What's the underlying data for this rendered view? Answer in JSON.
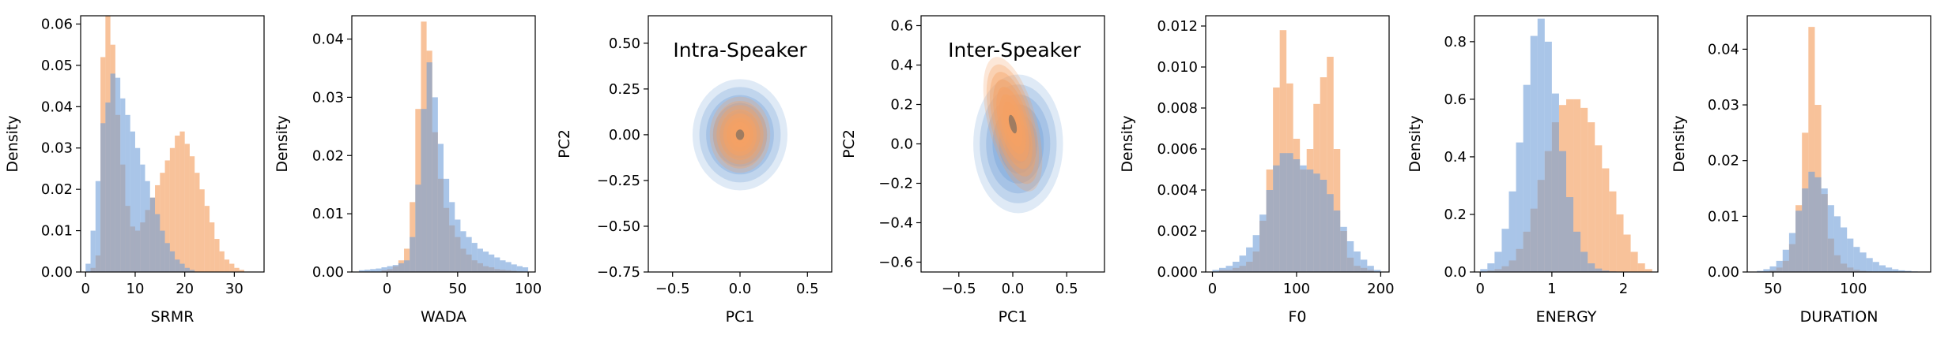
{
  "colors": {
    "orange": "#f5a164",
    "blue": "#6f9fd8",
    "overlap": "#8d93a0"
  },
  "chart_data": [
    {
      "type": "histogram",
      "xlabel": "SRMR",
      "ylabel": "Density",
      "xlim": [
        -1,
        36
      ],
      "ylim": [
        0,
        0.062
      ],
      "xticks": [
        {
          "v": 0,
          "t": "0"
        },
        {
          "v": 10,
          "t": "10"
        },
        {
          "v": 20,
          "t": "20"
        },
        {
          "v": 30,
          "t": "30"
        }
      ],
      "yticks": [
        {
          "v": 0,
          "t": "0.00"
        },
        {
          "v": 0.01,
          "t": "0.01"
        },
        {
          "v": 0.02,
          "t": "0.02"
        },
        {
          "v": 0.03,
          "t": "0.03"
        },
        {
          "v": 0.04,
          "t": "0.04"
        },
        {
          "v": 0.05,
          "t": "0.05"
        },
        {
          "v": 0.06,
          "t": "0.06"
        }
      ],
      "series": [
        {
          "color": "orange",
          "bins": [
            0,
            1,
            2,
            3,
            4,
            5,
            6,
            7,
            8,
            9,
            10,
            11,
            12,
            13,
            14,
            15,
            16,
            17,
            18,
            19,
            20,
            21,
            22,
            23,
            24,
            25,
            26,
            27,
            28,
            29,
            30,
            31,
            32
          ],
          "values": [
            0.0,
            0.001,
            0.004,
            0.052,
            0.062,
            0.055,
            0.038,
            0.026,
            0.016,
            0.011,
            0.01,
            0.012,
            0.015,
            0.018,
            0.021,
            0.024,
            0.027,
            0.03,
            0.033,
            0.034,
            0.031,
            0.028,
            0.024,
            0.02,
            0.016,
            0.012,
            0.008,
            0.005,
            0.003,
            0.002,
            0.001,
            0.0005
          ]
        },
        {
          "color": "blue",
          "bins": [
            0,
            1,
            2,
            3,
            4,
            5,
            6,
            7,
            8,
            9,
            10,
            11,
            12,
            13,
            14,
            15,
            16,
            17,
            18,
            19,
            20,
            21,
            22,
            23,
            24,
            25,
            26,
            27,
            28,
            29,
            30,
            31,
            32
          ],
          "values": [
            0.002,
            0.01,
            0.022,
            0.036,
            0.041,
            0.048,
            0.047,
            0.042,
            0.038,
            0.034,
            0.03,
            0.026,
            0.022,
            0.018,
            0.014,
            0.01,
            0.007,
            0.005,
            0.003,
            0.002,
            0.001,
            0.0005,
            0.0,
            0.0,
            0.0,
            0.0,
            0.0,
            0.0,
            0.0,
            0.0,
            0.0,
            0.0
          ]
        }
      ]
    },
    {
      "type": "histogram",
      "xlabel": "WADA",
      "ylabel": "Density",
      "xlim": [
        -25,
        105
      ],
      "ylim": [
        0,
        0.044
      ],
      "xticks": [
        {
          "v": 0,
          "t": "0"
        },
        {
          "v": 50,
          "t": "50"
        },
        {
          "v": 100,
          "t": "100"
        }
      ],
      "yticks": [
        {
          "v": 0,
          "t": "0.00"
        },
        {
          "v": 0.01,
          "t": "0.01"
        },
        {
          "v": 0.02,
          "t": "0.02"
        },
        {
          "v": 0.03,
          "t": "0.03"
        },
        {
          "v": 0.04,
          "t": "0.04"
        }
      ],
      "series": [
        {
          "color": "orange",
          "bins": [
            -20,
            -16,
            -12,
            -8,
            -4,
            0,
            4,
            8,
            12,
            16,
            20,
            24,
            28,
            32,
            36,
            40,
            44,
            48,
            52,
            56,
            60,
            64,
            68,
            72,
            76,
            80,
            84,
            88,
            92,
            96,
            100
          ],
          "values": [
            0.0,
            0.0,
            0.0,
            0.0,
            0.0003,
            0.0005,
            0.001,
            0.002,
            0.004,
            0.012,
            0.028,
            0.043,
            0.038,
            0.024,
            0.016,
            0.011,
            0.008,
            0.006,
            0.004,
            0.003,
            0.002,
            0.0015,
            0.001,
            0.0008,
            0.0005,
            0.0004,
            0.0003,
            0.0002,
            0.0001,
            0.0
          ]
        },
        {
          "color": "blue",
          "bins": [
            -20,
            -16,
            -12,
            -8,
            -4,
            0,
            4,
            8,
            12,
            16,
            20,
            24,
            28,
            32,
            36,
            40,
            44,
            48,
            52,
            56,
            60,
            64,
            68,
            72,
            76,
            80,
            84,
            88,
            92,
            96,
            100
          ],
          "values": [
            0.0003,
            0.0004,
            0.0005,
            0.0006,
            0.0008,
            0.001,
            0.0012,
            0.0015,
            0.002,
            0.006,
            0.015,
            0.028,
            0.036,
            0.03,
            0.022,
            0.016,
            0.012,
            0.009,
            0.007,
            0.006,
            0.005,
            0.004,
            0.0035,
            0.003,
            0.0025,
            0.002,
            0.0017,
            0.0013,
            0.001,
            0.0008
          ]
        }
      ]
    },
    {
      "type": "kde2d",
      "title": "Intra-Speaker",
      "xlabel": "PC1",
      "ylabel": "PC2",
      "xlim": [
        -0.68,
        0.68
      ],
      "ylim": [
        -0.75,
        0.65
      ],
      "xticks": [
        {
          "v": -0.5,
          "t": "−0.5"
        },
        {
          "v": 0,
          "t": "0.0"
        },
        {
          "v": 0.5,
          "t": "0.5"
        }
      ],
      "yticks": [
        {
          "v": -0.75,
          "t": "−0.75"
        },
        {
          "v": -0.5,
          "t": "−0.50"
        },
        {
          "v": -0.25,
          "t": "−0.25"
        },
        {
          "v": 0,
          "t": "0.00"
        },
        {
          "v": 0.25,
          "t": "0.25"
        },
        {
          "v": 0.5,
          "t": "0.50"
        }
      ],
      "series": [
        {
          "color": "blue",
          "cx": 0.0,
          "cy": 0.0,
          "sx": 0.22,
          "sy": 0.19,
          "rot": 0
        },
        {
          "color": "orange",
          "cx": 0.0,
          "cy": 0.0,
          "sx": 0.14,
          "sy": 0.13,
          "rot": 0
        }
      ]
    },
    {
      "type": "kde2d",
      "title": "Inter-Speaker",
      "xlabel": "PC1",
      "ylabel": "PC2",
      "xlim": [
        -0.85,
        0.85
      ],
      "ylim": [
        -0.65,
        0.65
      ],
      "xticks": [
        {
          "v": -0.5,
          "t": "−0.5"
        },
        {
          "v": 0,
          "t": "0.0"
        },
        {
          "v": 0.5,
          "t": "0.5"
        }
      ],
      "yticks": [
        {
          "v": -0.6,
          "t": "−0.6"
        },
        {
          "v": -0.4,
          "t": "−0.4"
        },
        {
          "v": -0.2,
          "t": "−0.2"
        },
        {
          "v": 0,
          "t": "0.0"
        },
        {
          "v": 0.2,
          "t": "0.2"
        },
        {
          "v": 0.4,
          "t": "0.4"
        },
        {
          "v": 0.6,
          "t": "0.6"
        }
      ],
      "series": [
        {
          "color": "blue",
          "cx": 0.05,
          "cy": 0.0,
          "sx": 0.26,
          "sy": 0.22,
          "rot": 0
        },
        {
          "color": "orange",
          "cx": 0.0,
          "cy": 0.1,
          "sx": 0.14,
          "sy": 0.22,
          "rot": 15
        }
      ]
    },
    {
      "type": "histogram",
      "xlabel": "F0",
      "ylabel": "Density",
      "xlim": [
        -8,
        210
      ],
      "ylim": [
        0,
        0.0125
      ],
      "xticks": [
        {
          "v": 0,
          "t": "0"
        },
        {
          "v": 100,
          "t": "100"
        },
        {
          "v": 200,
          "t": "200"
        }
      ],
      "yticks": [
        {
          "v": 0,
          "t": "0.000"
        },
        {
          "v": 0.002,
          "t": "0.002"
        },
        {
          "v": 0.004,
          "t": "0.004"
        },
        {
          "v": 0.006,
          "t": "0.006"
        },
        {
          "v": 0.008,
          "t": "0.008"
        },
        {
          "v": 0.01,
          "t": "0.010"
        },
        {
          "v": 0.012,
          "t": "0.012"
        }
      ],
      "series": [
        {
          "color": "orange",
          "bins": [
            0,
            8,
            16,
            24,
            32,
            40,
            48,
            56,
            64,
            72,
            80,
            88,
            96,
            104,
            112,
            120,
            128,
            136,
            144,
            152,
            160,
            168,
            176,
            184,
            192,
            200
          ],
          "values": [
            0.0,
            0.0001,
            0.0001,
            0.0002,
            0.0003,
            0.0005,
            0.001,
            0.0025,
            0.005,
            0.009,
            0.0118,
            0.0092,
            0.0065,
            0.005,
            0.006,
            0.0082,
            0.0095,
            0.0105,
            0.006,
            0.002,
            0.0007,
            0.0003,
            0.0002,
            0.0001,
            0.0
          ]
        },
        {
          "color": "blue",
          "bins": [
            0,
            8,
            16,
            24,
            32,
            40,
            48,
            56,
            64,
            72,
            80,
            88,
            96,
            104,
            112,
            120,
            128,
            136,
            144,
            152,
            160,
            168,
            176,
            184,
            192,
            200
          ],
          "values": [
            0.0001,
            0.0002,
            0.0003,
            0.0005,
            0.0008,
            0.0012,
            0.0018,
            0.0028,
            0.004,
            0.0052,
            0.0058,
            0.0058,
            0.0055,
            0.0052,
            0.005,
            0.0048,
            0.0045,
            0.0038,
            0.003,
            0.0022,
            0.0015,
            0.001,
            0.0006,
            0.0003,
            0.0001
          ]
        }
      ]
    },
    {
      "type": "histogram",
      "xlabel": "ENERGY",
      "ylabel": "Density",
      "xlim": [
        -0.08,
        2.48
      ],
      "ylim": [
        0,
        0.89
      ],
      "xticks": [
        {
          "v": 0,
          "t": "0"
        },
        {
          "v": 1,
          "t": "1"
        },
        {
          "v": 2,
          "t": "2"
        }
      ],
      "yticks": [
        {
          "v": 0,
          "t": "0.0"
        },
        {
          "v": 0.2,
          "t": "0.2"
        },
        {
          "v": 0.4,
          "t": "0.4"
        },
        {
          "v": 0.6,
          "t": "0.6"
        },
        {
          "v": 0.8,
          "t": "0.8"
        }
      ],
      "series": [
        {
          "color": "orange",
          "bins": [
            0.0,
            0.1,
            0.2,
            0.3,
            0.4,
            0.5,
            0.6,
            0.7,
            0.8,
            0.9,
            1.0,
            1.1,
            1.2,
            1.3,
            1.4,
            1.5,
            1.6,
            1.7,
            1.8,
            1.9,
            2.0,
            2.1,
            2.2,
            2.3
          ],
          "values": [
            0.0,
            0.005,
            0.01,
            0.02,
            0.04,
            0.08,
            0.14,
            0.22,
            0.32,
            0.42,
            0.52,
            0.58,
            0.6,
            0.6,
            0.57,
            0.52,
            0.44,
            0.36,
            0.28,
            0.2,
            0.13,
            0.07,
            0.03,
            0.01
          ]
        },
        {
          "color": "blue",
          "bins": [
            0.0,
            0.1,
            0.2,
            0.3,
            0.4,
            0.5,
            0.6,
            0.7,
            0.8,
            0.9,
            1.0,
            1.1,
            1.2,
            1.3,
            1.4,
            1.5,
            1.6,
            1.7,
            1.8,
            1.9,
            2.0,
            2.1,
            2.2,
            2.3
          ],
          "values": [
            0.01,
            0.03,
            0.07,
            0.15,
            0.28,
            0.45,
            0.65,
            0.82,
            0.88,
            0.8,
            0.62,
            0.42,
            0.26,
            0.14,
            0.07,
            0.03,
            0.012,
            0.005,
            0.002,
            0.0,
            0.0,
            0.0,
            0.0,
            0.0
          ]
        }
      ]
    },
    {
      "type": "histogram",
      "xlabel": "DURATION",
      "ylabel": "Density",
      "xlim": [
        34,
        148
      ],
      "ylim": [
        0,
        0.046
      ],
      "xticks": [
        {
          "v": 50,
          "t": "50"
        },
        {
          "v": 100,
          "t": "100"
        }
      ],
      "yticks": [
        {
          "v": 0,
          "t": "0.00"
        },
        {
          "v": 0.01,
          "t": "0.01"
        },
        {
          "v": 0.02,
          "t": "0.02"
        },
        {
          "v": 0.03,
          "t": "0.03"
        },
        {
          "v": 0.04,
          "t": "0.04"
        }
      ],
      "series": [
        {
          "color": "orange",
          "bins": [
            40,
            44,
            48,
            52,
            56,
            60,
            64,
            68,
            72,
            76,
            80,
            84,
            88,
            92,
            96,
            100,
            104,
            108,
            112,
            116,
            120,
            124,
            128,
            132,
            136,
            140
          ],
          "values": [
            0.0,
            0.0,
            0.0003,
            0.0008,
            0.002,
            0.005,
            0.012,
            0.025,
            0.044,
            0.03,
            0.014,
            0.006,
            0.003,
            0.0015,
            0.0008,
            0.0004,
            0.0002,
            0.0001,
            0.0,
            0.0,
            0.0,
            0.0,
            0.0,
            0.0,
            0.0,
            0.0
          ]
        },
        {
          "color": "blue",
          "bins": [
            40,
            44,
            48,
            52,
            56,
            60,
            64,
            68,
            72,
            76,
            80,
            84,
            88,
            92,
            96,
            100,
            104,
            108,
            112,
            116,
            120,
            124,
            128,
            132,
            136,
            140
          ],
          "values": [
            0.0002,
            0.0005,
            0.001,
            0.002,
            0.004,
            0.007,
            0.011,
            0.015,
            0.018,
            0.017,
            0.015,
            0.012,
            0.01,
            0.008,
            0.006,
            0.0045,
            0.0035,
            0.0025,
            0.0018,
            0.0012,
            0.0008,
            0.0005,
            0.0003,
            0.0002,
            0.0001,
            0.0
          ]
        }
      ]
    }
  ]
}
